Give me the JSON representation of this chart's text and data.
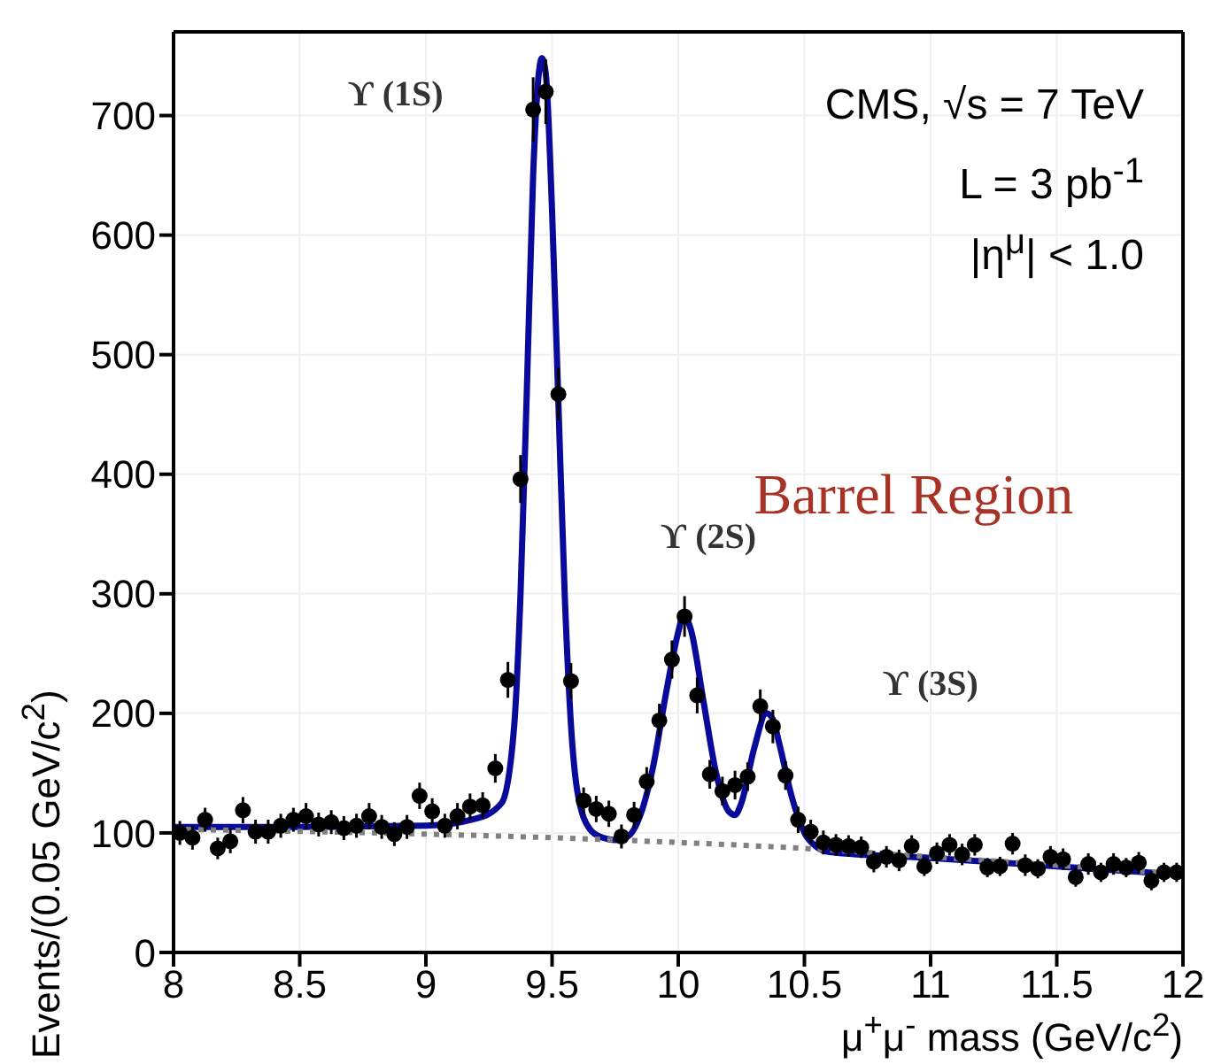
{
  "chart_data": {
    "type": "scatter",
    "xlabel": "μ$^{+}$μ$^{-}$ mass (GeV/c$^{2}$)",
    "ylabel": "Events/(0.05 GeV/c$^{2}$)",
    "xlim": [
      8,
      12
    ],
    "xticks": [
      8,
      8.5,
      9,
      9.5,
      10,
      10.5,
      11,
      11.5,
      12
    ],
    "ylim": [
      0,
      770
    ],
    "yticks": [
      0,
      100,
      200,
      300,
      400,
      500,
      600,
      700
    ],
    "grid": true,
    "legend": false,
    "annotations": [
      "CMS, √s = 7 TeV",
      "L = 3 pb$^{-1}$",
      "|η$^{μ}$| < 1.0",
      "Barrel Region",
      "ϒ (1S)",
      "ϒ (2S)",
      "ϒ (3S)"
    ],
    "series": [
      {
        "color": "#000000",
        "marker": "circle",
        "x": [
          8.025,
          8.075,
          8.125,
          8.175,
          8.225,
          8.275,
          8.325,
          8.375,
          8.425,
          8.475,
          8.525,
          8.575,
          8.625,
          8.675,
          8.725,
          8.775,
          8.825,
          8.875,
          8.925,
          8.975,
          9.025,
          9.075,
          9.125,
          9.175,
          9.225,
          9.275,
          9.325,
          9.375,
          9.425,
          9.475,
          9.525,
          9.575,
          9.625,
          9.675,
          9.725,
          9.775,
          9.825,
          9.875,
          9.925,
          9.975,
          10.025,
          10.075,
          10.125,
          10.175,
          10.225,
          10.275,
          10.325,
          10.375,
          10.425,
          10.475,
          10.525,
          10.575,
          10.625,
          10.675,
          10.725,
          10.775,
          10.825,
          10.875,
          10.925,
          10.975,
          11.025,
          11.075,
          11.125,
          11.175,
          11.225,
          11.275,
          11.325,
          11.375,
          11.425,
          11.475,
          11.525,
          11.575,
          11.625,
          11.675,
          11.725,
          11.775,
          11.825,
          11.875,
          11.925,
          11.975
        ],
        "values": [
          100,
          96,
          111,
          87,
          93,
          119,
          101,
          101,
          106,
          111,
          114,
          107,
          109,
          104,
          106,
          114,
          105,
          99,
          105,
          131,
          118,
          106,
          114,
          122,
          123,
          154,
          228,
          396,
          705,
          720,
          467,
          227,
          127,
          120,
          116,
          97,
          115,
          143,
          194,
          245,
          281,
          215,
          149,
          135,
          140,
          147,
          206,
          189,
          148,
          111,
          101,
          92,
          90,
          89,
          88,
          76,
          80,
          77,
          89,
          72,
          83,
          90,
          82,
          90,
          71,
          72,
          91,
          73,
          70,
          80,
          78,
          63,
          74,
          67,
          74,
          71,
          75,
          60,
          67,
          67
        ],
        "errors": [
          10,
          10,
          10,
          9,
          10,
          11,
          10,
          10,
          10,
          10,
          11,
          10,
          10,
          10,
          10,
          11,
          10,
          10,
          10,
          11,
          11,
          10,
          11,
          11,
          11,
          12,
          15,
          20,
          27,
          27,
          22,
          15,
          11,
          11,
          11,
          10,
          11,
          12,
          14,
          16,
          17,
          15,
          12,
          12,
          12,
          12,
          14,
          14,
          12,
          11,
          10,
          10,
          9,
          9,
          9,
          9,
          9,
          9,
          9,
          8,
          9,
          9,
          9,
          9,
          8,
          8,
          9,
          9,
          8,
          9,
          9,
          8,
          9,
          8,
          9,
          8,
          9,
          8,
          8,
          8
        ]
      },
      {
        "type": "line",
        "color": "#0a0a9a",
        "line_style": "solid",
        "marker": "none",
        "x": [
          8,
          8.5,
          9,
          9.2,
          9.3,
          9.35,
          9.375,
          9.4,
          9.425,
          9.45,
          9.46,
          9.475,
          9.5,
          9.525,
          9.55,
          9.575,
          9.6,
          9.65,
          9.7,
          9.75,
          9.8,
          9.85,
          9.9,
          9.95,
          10,
          10.02,
          10.05,
          10.1,
          10.15,
          10.2,
          10.225,
          10.25,
          10.3,
          10.35,
          10.375,
          10.4,
          10.45,
          10.5,
          10.55,
          10.6,
          11,
          11.5,
          12
        ],
        "values": [
          105,
          105,
          106,
          112,
          125,
          190,
          300,
          470,
          650,
          740,
          748,
          735,
          620,
          460,
          300,
          190,
          135,
          103,
          96,
          94,
          97,
          115,
          155,
          215,
          268,
          282,
          270,
          210,
          150,
          118,
          115,
          125,
          170,
          200,
          195,
          175,
          130,
          100,
          88,
          84,
          79,
          72,
          65
        ]
      },
      {
        "type": "line",
        "color": "#808080",
        "line_style": "dotted",
        "marker": "none",
        "x": [
          8,
          9,
          9.5,
          10,
          10.5,
          11,
          11.5,
          12
        ],
        "values": [
          103,
          99,
          96,
          92,
          87,
          80,
          73,
          65
        ]
      }
    ]
  }
}
